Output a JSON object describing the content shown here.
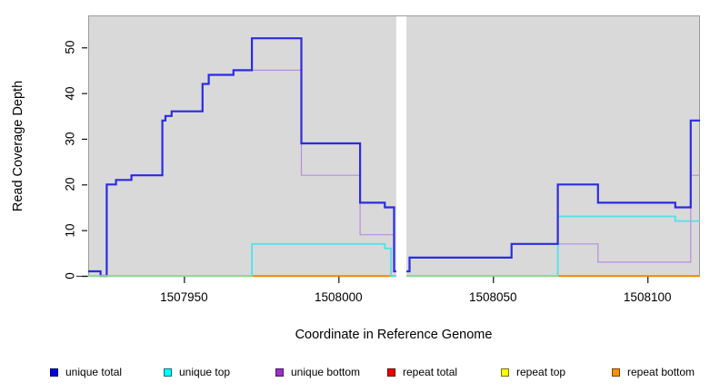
{
  "chart_data": {
    "type": "step-line",
    "title": "",
    "xlabel": "Coordinate in Reference Genome",
    "ylabel": "Read Coverage Depth",
    "x_ticks": [
      1507950,
      1508000,
      1508050,
      1508100
    ],
    "y_ticks": [
      0,
      10,
      20,
      30,
      40,
      50
    ],
    "xlim": [
      1507919,
      1508117
    ],
    "ylim": [
      0,
      57
    ],
    "grid": false,
    "plot_bg": "#d9d9d9",
    "gap_band": {
      "x_start": 1508018.7,
      "x_end": 1508022,
      "color": "#ffffff"
    },
    "series": [
      {
        "name": "repeat total",
        "line_color": "#cc2222",
        "width": 1.2,
        "segments": [
          {
            "points": [
              [
                1507919,
                0
              ]
            ],
            "end": 1508018.7
          },
          {
            "points": [
              [
                1508022,
                0
              ]
            ],
            "end": 1508117
          }
        ]
      },
      {
        "name": "repeat top",
        "line_color": "#f0f000",
        "width": 1.2,
        "segments": [
          {
            "points": [
              [
                1507919,
                0
              ]
            ],
            "end": 1508018.7
          },
          {
            "points": [
              [
                1508022,
                0
              ]
            ],
            "end": 1508117
          }
        ]
      },
      {
        "name": "repeat bottom",
        "line_color": "#ff8f00",
        "width": 1.8,
        "segments": [
          {
            "points": [
              [
                1507919,
                0
              ]
            ],
            "end": 1508018.7
          },
          {
            "points": [
              [
                1508022,
                0
              ]
            ],
            "end": 1508117
          }
        ]
      },
      {
        "name": "unique top",
        "line_color": "#4fe3e8",
        "width": 1.8,
        "segments": [
          {
            "points": [
              [
                1507919,
                0
              ],
              [
                1507972,
                7
              ],
              [
                1508015,
                6
              ],
              [
                1508017,
                0
              ]
            ],
            "end": 1508018.7
          },
          {
            "points": [
              [
                1508022,
                0
              ],
              [
                1508071,
                13
              ],
              [
                1508109,
                12
              ]
            ],
            "end": 1508117
          }
        ]
      },
      {
        "name": "unique bottom",
        "line_color": "#b98ce0",
        "width": 1.2,
        "segments": [
          {
            "points": [
              [
                1507919,
                1
              ],
              [
                1507923,
                0
              ],
              [
                1507925,
                20
              ],
              [
                1507928,
                21
              ],
              [
                1507933,
                22
              ],
              [
                1507943,
                34
              ],
              [
                1507944,
                35
              ],
              [
                1507946,
                36
              ],
              [
                1507956,
                42
              ],
              [
                1507958,
                44
              ],
              [
                1507966,
                45
              ],
              [
                1507988,
                22
              ],
              [
                1508007,
                9
              ],
              [
                1508018,
                1
              ]
            ],
            "end": 1508018.7
          },
          {
            "points": [
              [
                1508022,
                1
              ],
              [
                1508023,
                4
              ],
              [
                1508056,
                7
              ],
              [
                1508084,
                3
              ],
              [
                1508114,
                22
              ]
            ],
            "end": 1508117
          }
        ]
      },
      {
        "name": "unique total",
        "line_color": "#2b2be4",
        "width": 2.2,
        "segments": [
          {
            "points": [
              [
                1507919,
                1
              ],
              [
                1507923,
                0
              ],
              [
                1507925,
                20
              ],
              [
                1507928,
                21
              ],
              [
                1507933,
                22
              ],
              [
                1507943,
                34
              ],
              [
                1507944,
                35
              ],
              [
                1507946,
                36
              ],
              [
                1507956,
                42
              ],
              [
                1507958,
                44
              ],
              [
                1507966,
                45
              ],
              [
                1507972,
                52
              ],
              [
                1507988,
                29
              ],
              [
                1508007,
                16
              ],
              [
                1508015,
                15
              ],
              [
                1508018,
                1
              ]
            ],
            "end": 1508018.7
          },
          {
            "points": [
              [
                1508022,
                1
              ],
              [
                1508023,
                4
              ],
              [
                1508056,
                7
              ],
              [
                1508071,
                20
              ],
              [
                1508084,
                16
              ],
              [
                1508109,
                15
              ],
              [
                1508114,
                34
              ]
            ],
            "end": 1508117
          }
        ]
      }
    ],
    "baseline_overlaps": [
      {
        "color": "#96d996",
        "y": 0,
        "x_ranges": [
          [
            1507919,
            1507972
          ],
          [
            1508022,
            1508071
          ]
        ]
      }
    ],
    "legend": [
      {
        "label": "unique total",
        "color": "#0000e8"
      },
      {
        "label": "unique top",
        "color": "#00ffff"
      },
      {
        "label": "unique bottom",
        "color": "#9932cc"
      },
      {
        "label": "repeat total",
        "color": "#ee0000"
      },
      {
        "label": "repeat top",
        "color": "#ffff00"
      },
      {
        "label": "repeat bottom",
        "color": "#ff9100"
      }
    ]
  }
}
